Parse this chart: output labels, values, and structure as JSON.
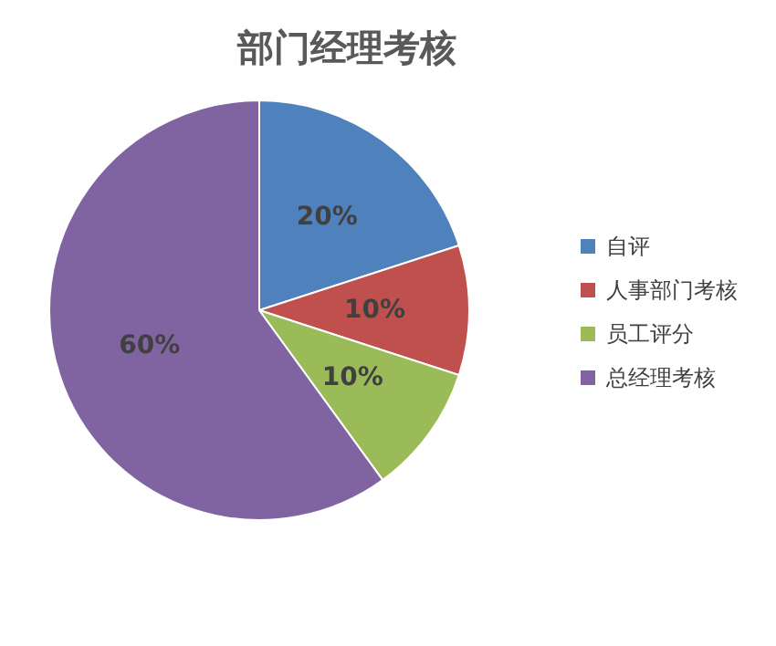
{
  "chart_data": {
    "type": "pie",
    "title": "部门经理考核",
    "categories": [
      "自评",
      "人事部门考核",
      "员工评分",
      "总经理考核"
    ],
    "values": [
      20,
      10,
      10,
      60
    ],
    "colors": [
      "#4f81bd",
      "#c0504d",
      "#9bbb59",
      "#8064a2"
    ],
    "value_labels": [
      "20%",
      "10%",
      "10%",
      "60%"
    ],
    "legend": "right"
  }
}
